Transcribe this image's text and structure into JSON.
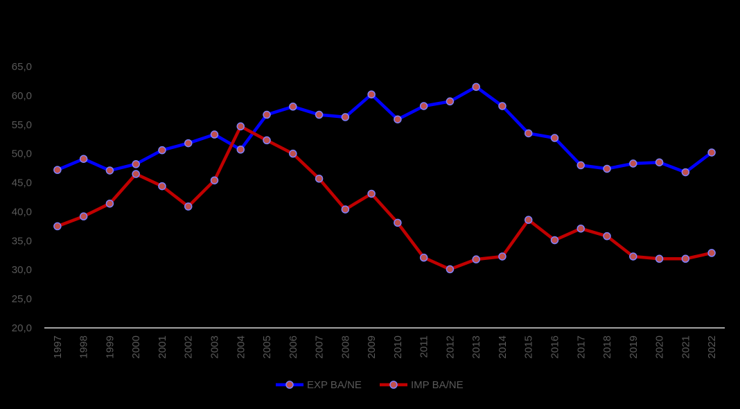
{
  "chart_data": {
    "type": "line",
    "title": "",
    "xlabel": "",
    "ylabel": "",
    "ylim": [
      20,
      65
    ],
    "yticks": [
      "20,0",
      "25,0",
      "30,0",
      "35,0",
      "40,0",
      "45,0",
      "50,0",
      "55,0",
      "60,0",
      "65,0"
    ],
    "ytick_values": [
      20,
      25,
      30,
      35,
      40,
      45,
      50,
      55,
      60,
      65
    ],
    "grid": false,
    "legend_position": "bottom",
    "categories": [
      "1997",
      "1998",
      "1999",
      "2000",
      "2001",
      "2002",
      "2003",
      "2004",
      "2005",
      "2006",
      "2007",
      "2008",
      "2009",
      "2010",
      "2011",
      "2012",
      "2013",
      "2014",
      "2015",
      "2016",
      "2017",
      "2018",
      "2019",
      "2020",
      "2021",
      "2022"
    ],
    "series": [
      {
        "name": "EXP BA/NE",
        "color": "#0000FF",
        "marker_fill": "#C0504D",
        "marker_edge": "#8080FF",
        "values": [
          47.2,
          49.1,
          47.1,
          48.2,
          50.6,
          51.8,
          53.3,
          50.7,
          56.7,
          58.1,
          56.7,
          56.3,
          60.2,
          55.9,
          58.2,
          59.0,
          61.5,
          58.2,
          53.5,
          52.7,
          48.0,
          47.4,
          48.3,
          48.5,
          46.8,
          50.2
        ]
      },
      {
        "name": "IMP BA/NE",
        "color": "#C00000",
        "marker_fill": "#C0504D",
        "marker_edge": "#8080FF",
        "values": [
          37.5,
          39.2,
          41.4,
          46.5,
          44.4,
          40.9,
          45.4,
          54.7,
          52.3,
          50.0,
          45.7,
          40.4,
          43.1,
          38.1,
          32.1,
          30.1,
          31.8,
          32.3,
          38.6,
          35.1,
          37.1,
          35.8,
          32.3,
          31.9,
          31.9,
          32.9
        ]
      }
    ]
  }
}
